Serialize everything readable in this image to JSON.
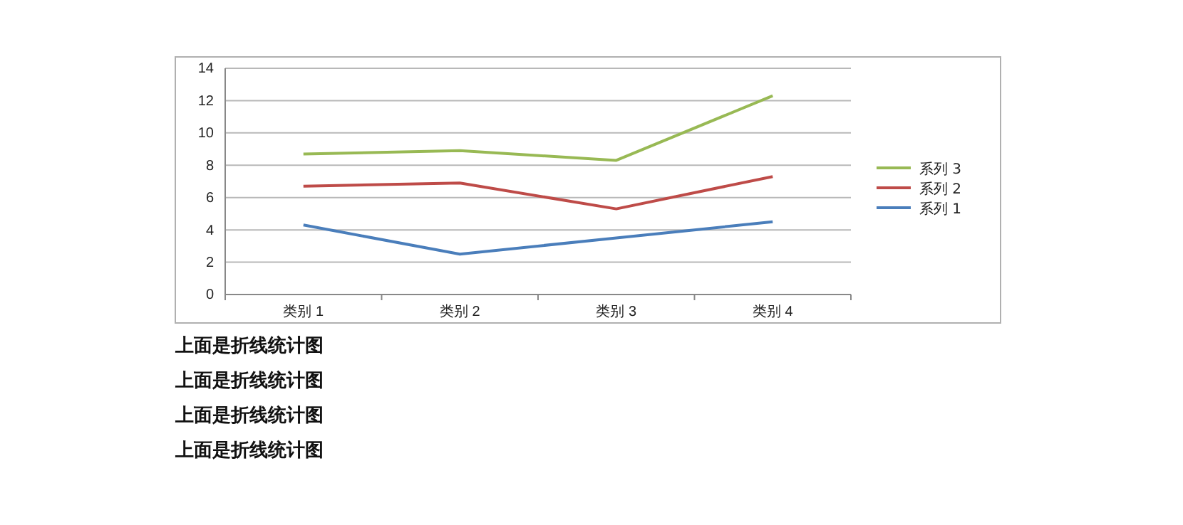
{
  "chart_data": {
    "type": "line",
    "categories": [
      "类别 1",
      "类别 2",
      "类别 3",
      "类别 4"
    ],
    "series": [
      {
        "name": "系列 1",
        "color": "#4a7ebb",
        "values": [
          4.3,
          2.5,
          3.5,
          4.5
        ]
      },
      {
        "name": "系列 2",
        "color": "#be4b48",
        "values": [
          6.7,
          6.9,
          5.3,
          7.3
        ]
      },
      {
        "name": "系列 3",
        "color": "#98b954",
        "values": [
          8.7,
          8.9,
          8.3,
          12.3
        ]
      }
    ],
    "ylim": [
      0,
      14
    ],
    "yticks": [
      0,
      2,
      4,
      6,
      8,
      10,
      12,
      14
    ],
    "grid": "y",
    "legend": "right",
    "marker": "none",
    "line_style": "solid",
    "annotations": [
      "上面是折线统计图",
      "上面是折线统计图",
      "上面是折线统计图",
      "上面是折线统计图"
    ]
  }
}
